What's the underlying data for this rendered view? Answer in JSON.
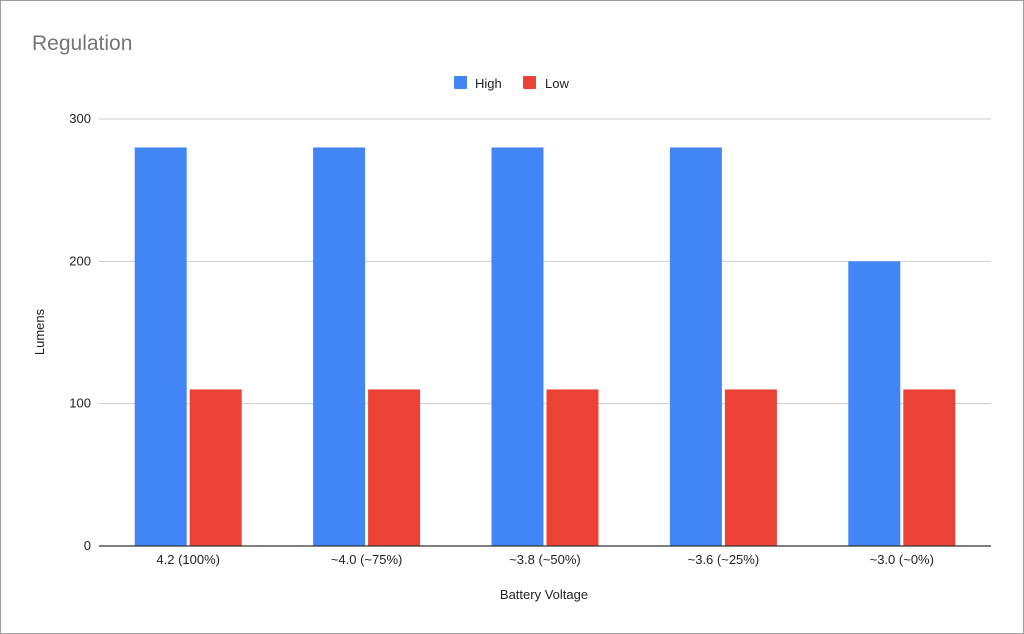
{
  "chart_data": {
    "type": "bar",
    "title": "Regulation",
    "xlabel": "Battery Voltage",
    "ylabel": "Lumens",
    "categories": [
      "4.2 (100%)",
      "~4.0 (~75%)",
      "~3.8 (~50%)",
      "~3.6 (~25%)",
      "~3.0 (~0%)"
    ],
    "series": [
      {
        "name": "High",
        "color": "#4285f4",
        "values": [
          280,
          280,
          280,
          280,
          200
        ]
      },
      {
        "name": "Low",
        "color": "#ea4335",
        "values": [
          110,
          110,
          110,
          110,
          110
        ]
      }
    ],
    "ylim": [
      0,
      300
    ],
    "yticks": [
      0,
      100,
      200,
      300
    ],
    "grid": true,
    "legend": "top-center"
  }
}
